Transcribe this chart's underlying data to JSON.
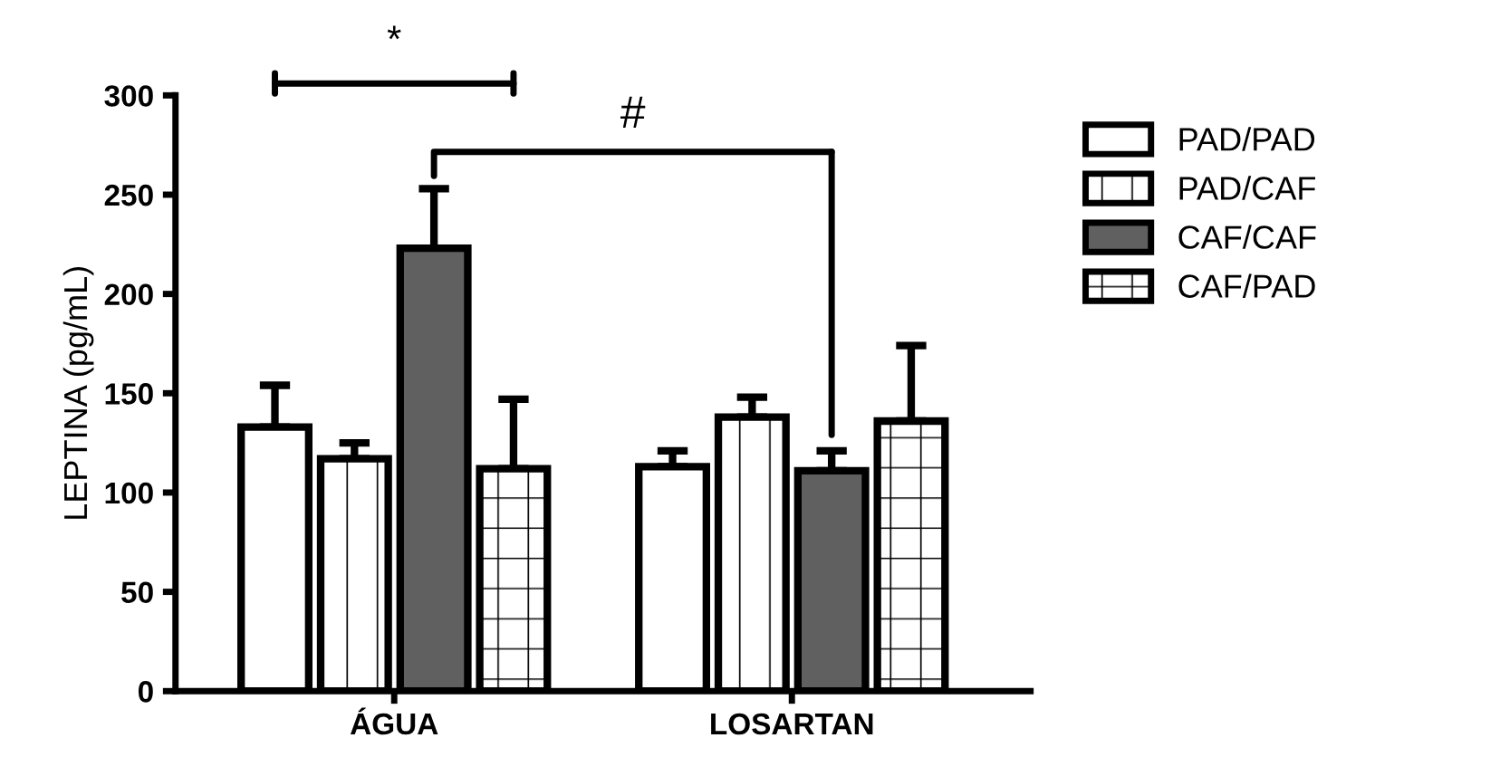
{
  "chart_data": {
    "type": "bar",
    "ylabel": "LEPTINA (pg/mL)",
    "categories": [
      "ÁGUA",
      "LOSARTAN"
    ],
    "series": [
      {
        "name": "PAD/PAD",
        "color": "#ffffff",
        "values": [
          133,
          113
        ],
        "errors": [
          [
            133,
            154
          ],
          [
            113,
            121
          ]
        ]
      },
      {
        "name": "PAD/CAF",
        "color": "#ffffff",
        "values": [
          117,
          138
        ],
        "errors": [
          [
            117,
            125
          ],
          [
            138,
            148
          ]
        ]
      },
      {
        "name": "CAF/CAF",
        "color": "#606060",
        "values": [
          223,
          111
        ],
        "errors": [
          [
            223,
            253
          ],
          [
            111,
            121
          ]
        ]
      },
      {
        "name": "CAF/PAD",
        "color": "#ffffff",
        "values": [
          112,
          136
        ],
        "errors": [
          [
            112,
            147
          ],
          [
            136,
            174
          ]
        ]
      }
    ],
    "ylim": [
      0,
      300
    ],
    "yticks": [
      0,
      50,
      100,
      150,
      200,
      250,
      300
    ],
    "legend": "right",
    "annotations": [
      "*",
      "#"
    ]
  }
}
